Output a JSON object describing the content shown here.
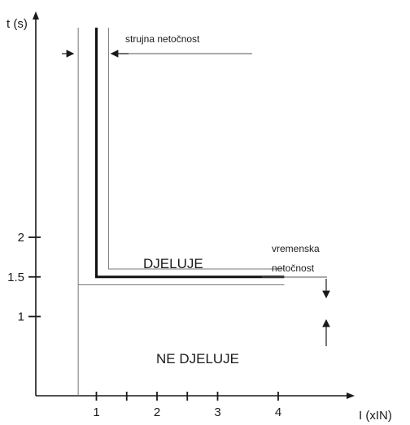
{
  "chart_data": {
    "type": "line",
    "ylabel": "t (s)",
    "xlabel": "I (xIN)",
    "xlim": [
      0,
      4.35
    ],
    "ylim": [
      0,
      3.35
    ],
    "x_ticks": [
      {
        "value": 1,
        "label": "1"
      },
      {
        "value": 1.5,
        "label": ""
      },
      {
        "value": 2,
        "label": "2"
      },
      {
        "value": 2.5,
        "label": ""
      },
      {
        "value": 3,
        "label": "3"
      },
      {
        "value": 4,
        "label": "4"
      }
    ],
    "y_ticks": [
      {
        "value": 1,
        "label": "1"
      },
      {
        "value": 1.5,
        "label": "1.5"
      },
      {
        "value": 2,
        "label": "2"
      }
    ],
    "grid": false,
    "series": [
      {
        "role": "characteristic",
        "points": [
          [
            1,
            3.3
          ],
          [
            1,
            1.5
          ],
          [
            4.1,
            1.5
          ]
        ]
      },
      {
        "role": "tolerance-upper",
        "points": [
          [
            1.2,
            3.3
          ],
          [
            1.2,
            1.6
          ],
          [
            4.1,
            1.6
          ]
        ]
      },
      {
        "role": "tolerance-lower",
        "points": [
          [
            0.7,
            3.3
          ],
          [
            0.7,
            0
          ],
          [
            0.7,
            1.4
          ],
          [
            4.1,
            1.4
          ]
        ]
      }
    ],
    "regions": {
      "operate": "DJELUJE",
      "no_operate": "NE DJELUJE"
    },
    "annotations": {
      "current_tolerance": "strujna netočnost",
      "time_tolerance_line1": "vremenska",
      "time_tolerance_line2": "netočnost"
    }
  }
}
